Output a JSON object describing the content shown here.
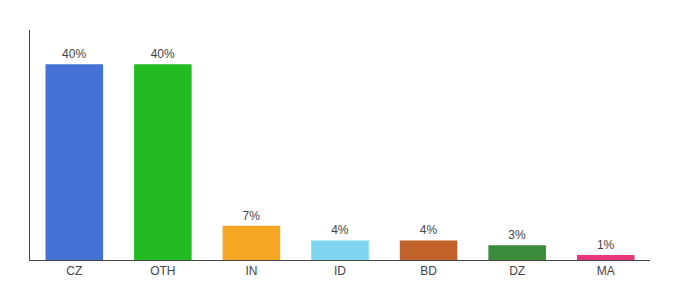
{
  "chart_data": {
    "type": "bar",
    "categories": [
      "CZ",
      "OTH",
      "IN",
      "ID",
      "BD",
      "DZ",
      "MA"
    ],
    "values": [
      40,
      40,
      7,
      4,
      4,
      3,
      1
    ],
    "value_labels": [
      "40%",
      "40%",
      "7%",
      "4%",
      "4%",
      "3%",
      "1%"
    ],
    "colors": [
      "#4472d4",
      "#22bb22",
      "#f5a623",
      "#7fd4f0",
      "#c1622a",
      "#3a8c3a",
      "#e8357a"
    ],
    "ylim": [
      0,
      47
    ],
    "data_labels": true,
    "tick_labels": "x",
    "grid": false
  }
}
